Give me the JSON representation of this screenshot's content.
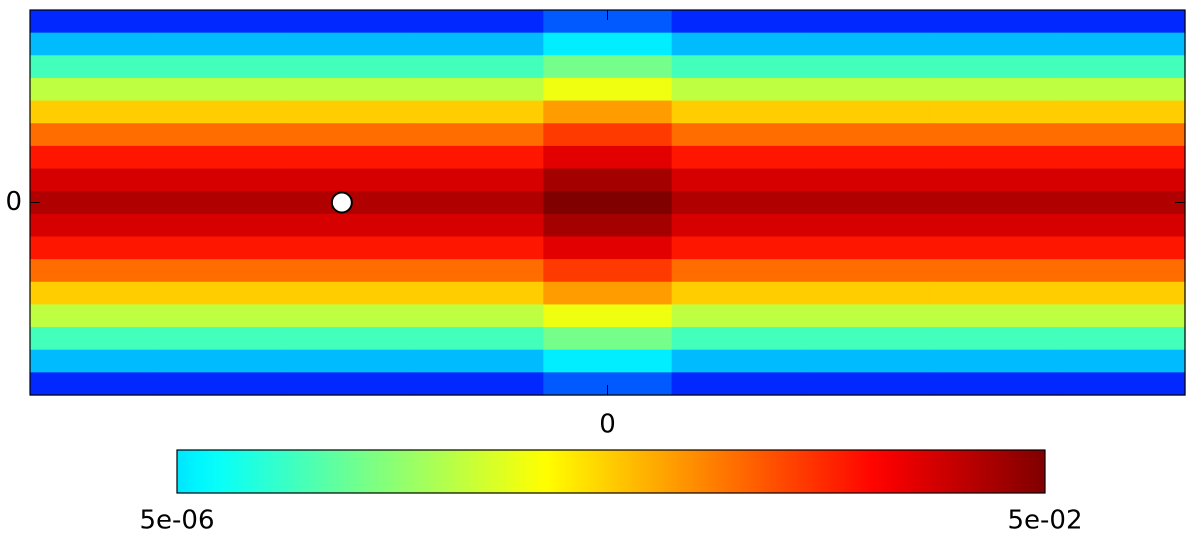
{
  "chart_data": {
    "type": "heatmap",
    "xlim": [
      -1,
      1
    ],
    "ylim": [
      -1,
      1
    ],
    "xticks": [
      0
    ],
    "yticks": [
      0
    ],
    "log": true,
    "colormap": "jet",
    "z": [
      [
        3.6e-07,
        3.6e-07,
        3.6e-07,
        3.6e-07,
        7.2e-07,
        3.6e-07,
        3.6e-07,
        3.6e-07,
        3.6e-07
      ],
      [
        2.8e-06,
        2.8e-06,
        2.8e-06,
        2.8e-06,
        5.6e-06,
        2.8e-06,
        2.8e-06,
        2.8e-06,
        2.8e-06
      ],
      [
        1.8e-05,
        1.8e-05,
        1.8e-05,
        1.8e-05,
        3.6e-05,
        1.8e-05,
        1.8e-05,
        1.8e-05,
        1.8e-05
      ],
      [
        0.0001,
        0.0001,
        0.0001,
        0.0001,
        0.0002,
        0.0001,
        0.0001,
        0.0001,
        0.0001
      ],
      [
        0.00049,
        0.00049,
        0.00049,
        0.00049,
        0.00098,
        0.00049,
        0.00049,
        0.00049,
        0.00049
      ],
      [
        0.0019,
        0.0019,
        0.0019,
        0.0019,
        0.0038,
        0.0019,
        0.0019,
        0.0019,
        0.0019
      ],
      [
        0.0063,
        0.0063,
        0.0063,
        0.0063,
        0.0126,
        0.0063,
        0.0063,
        0.0063,
        0.0063
      ],
      [
        0.015,
        0.015,
        0.015,
        0.015,
        0.03,
        0.015,
        0.015,
        0.015,
        0.015
      ],
      [
        0.025,
        0.025,
        0.025,
        0.025,
        0.05,
        0.025,
        0.025,
        0.025,
        0.025
      ],
      [
        0.015,
        0.015,
        0.015,
        0.015,
        0.03,
        0.015,
        0.015,
        0.015,
        0.015
      ],
      [
        0.0063,
        0.0063,
        0.0063,
        0.0063,
        0.0126,
        0.0063,
        0.0063,
        0.0063,
        0.0063
      ],
      [
        0.0019,
        0.0019,
        0.0019,
        0.0019,
        0.0038,
        0.0019,
        0.0019,
        0.0019,
        0.0019
      ],
      [
        0.00049,
        0.00049,
        0.00049,
        0.00049,
        0.00098,
        0.00049,
        0.00049,
        0.00049,
        0.00049
      ],
      [
        0.0001,
        0.0001,
        0.0001,
        0.0001,
        0.0002,
        0.0001,
        0.0001,
        0.0001,
        0.0001
      ],
      [
        1.8e-05,
        1.8e-05,
        1.8e-05,
        1.8e-05,
        3.6e-05,
        1.8e-05,
        1.8e-05,
        1.8e-05,
        1.8e-05
      ],
      [
        2.8e-06,
        2.8e-06,
        2.8e-06,
        2.8e-06,
        5.6e-06,
        2.8e-06,
        2.8e-06,
        2.8e-06,
        2.8e-06
      ],
      [
        3.6e-07,
        3.6e-07,
        3.6e-07,
        3.6e-07,
        7.2e-07,
        3.6e-07,
        3.6e-07,
        3.6e-07,
        3.6e-07
      ]
    ],
    "marker": {
      "x": -0.46,
      "y": 0
    },
    "colorbar": {
      "clim": [
        5e-06,
        0.05
      ],
      "ticks": [
        {
          "value": 5e-06,
          "label": "5e-06"
        },
        {
          "value": 0.05,
          "label": "5e-02"
        }
      ]
    }
  }
}
